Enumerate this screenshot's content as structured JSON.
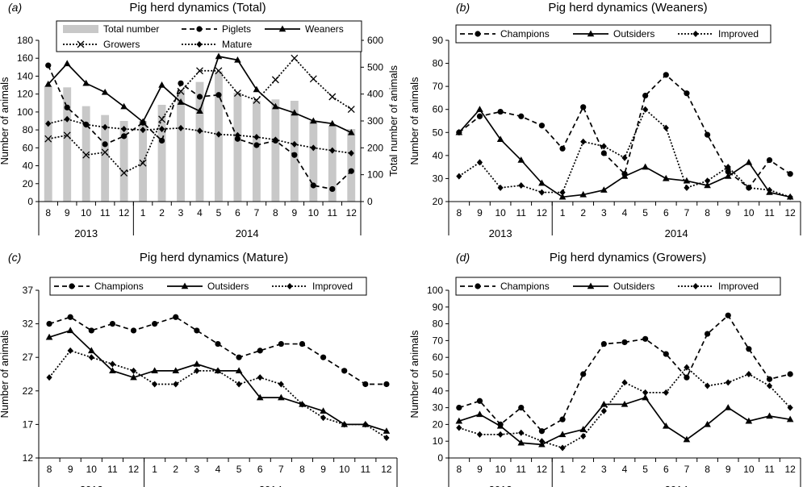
{
  "months": [
    "8",
    "9",
    "10",
    "11",
    "12",
    "1",
    "2",
    "3",
    "4",
    "5",
    "6",
    "7",
    "8",
    "9",
    "10",
    "11",
    "12"
  ],
  "years": [
    "2013",
    "2014"
  ],
  "chart_data": [
    {
      "id": "a",
      "panel": "(a)",
      "type": "line",
      "title": "Pig herd dynamics (Total)",
      "ylabel": "Number of animals",
      "y2label": "Total number of animals",
      "ylim": [
        0,
        180
      ],
      "yticks": [
        0,
        20,
        40,
        60,
        80,
        100,
        120,
        140,
        160,
        180
      ],
      "y2lim": [
        0,
        600
      ],
      "y2ticks": [
        0,
        100,
        200,
        300,
        400,
        500,
        600
      ],
      "bars": {
        "name": "Total number",
        "axis": "right",
        "values": [
          430,
          425,
          355,
          322,
          300,
          300,
          360,
          415,
          445,
          485,
          405,
          375,
          380,
          375,
          300,
          280,
          270
        ]
      },
      "series": [
        {
          "name": "Piglets",
          "style": "dashed",
          "marker": "circle",
          "values": [
            152,
            105,
            86,
            64,
            73,
            88,
            68,
            132,
            117,
            119,
            70,
            63,
            68,
            52,
            18,
            14,
            34
          ]
        },
        {
          "name": "Weaners",
          "style": "solid",
          "marker": "triangle",
          "values": [
            131,
            154,
            132,
            122,
            106,
            89,
            130,
            111,
            101,
            162,
            158,
            125,
            106,
            99,
            90,
            87,
            77
          ]
        },
        {
          "name": "Growers",
          "style": "dotted",
          "marker": "x",
          "values": [
            70,
            74,
            52,
            55,
            32,
            43,
            92,
            123,
            146,
            146,
            121,
            113,
            136,
            160,
            137,
            117,
            103
          ]
        },
        {
          "name": "Mature",
          "style": "dotted",
          "marker": "diamond",
          "values": [
            87,
            92,
            86,
            83,
            81,
            80,
            81,
            82,
            79,
            75,
            74,
            72,
            69,
            64,
            60,
            57,
            54
          ]
        }
      ]
    },
    {
      "id": "b",
      "panel": "(b)",
      "type": "line",
      "title": "Pig herd dynamics (Weaners)",
      "ylabel": "Number of animals",
      "ylim": [
        20,
        90
      ],
      "yticks": [
        20,
        30,
        40,
        50,
        60,
        70,
        80,
        90
      ],
      "series": [
        {
          "name": "Champions",
          "style": "dashed",
          "marker": "circle",
          "values": [
            50,
            57,
            59,
            57,
            53,
            43,
            61,
            41,
            32,
            66,
            75,
            67,
            49,
            33,
            26,
            38,
            32
          ]
        },
        {
          "name": "Outsiders",
          "style": "solid",
          "marker": "triangle",
          "values": [
            50,
            60,
            47,
            38,
            28,
            22,
            23,
            25,
            31,
            35,
            30,
            29,
            27,
            31,
            37,
            24,
            22
          ]
        },
        {
          "name": "Improved",
          "style": "dotted",
          "marker": "diamond",
          "values": [
            31,
            37,
            26,
            27,
            24,
            24,
            46,
            44,
            39,
            60,
            52,
            26,
            29,
            35,
            26,
            25,
            22
          ]
        }
      ]
    },
    {
      "id": "c",
      "panel": "(c)",
      "type": "line",
      "title": "Pig herd dynamics (Mature)",
      "ylabel": "Number of animals",
      "ylim": [
        12,
        37
      ],
      "yticks": [
        12,
        17,
        22,
        27,
        32,
        37
      ],
      "series": [
        {
          "name": "Champions",
          "style": "dashed",
          "marker": "circle",
          "values": [
            32,
            33,
            31,
            32,
            31,
            32,
            33,
            31,
            29,
            27,
            28,
            29,
            29,
            27,
            25,
            23,
            23
          ]
        },
        {
          "name": "Outsiders",
          "style": "solid",
          "marker": "triangle",
          "values": [
            30,
            31,
            28,
            25,
            24,
            25,
            25,
            26,
            25,
            25,
            21,
            21,
            20,
            19,
            17,
            17,
            16
          ]
        },
        {
          "name": "Improved",
          "style": "dotted",
          "marker": "diamond",
          "values": [
            24,
            28,
            27,
            26,
            25,
            23,
            23,
            25,
            25,
            23,
            24,
            23,
            20,
            18,
            17,
            17,
            15
          ]
        }
      ]
    },
    {
      "id": "d",
      "panel": "(d)",
      "type": "line",
      "title": "Pig herd dynamics (Growers)",
      "ylabel": "Number of animals",
      "ylim": [
        0,
        100
      ],
      "yticks": [
        0,
        10,
        20,
        30,
        40,
        50,
        60,
        70,
        80,
        90,
        100
      ],
      "series": [
        {
          "name": "Champions",
          "style": "dashed",
          "marker": "circle",
          "values": [
            30,
            34,
            20,
            30,
            16,
            23,
            50,
            68,
            69,
            71,
            62,
            48,
            74,
            85,
            65,
            47,
            50
          ]
        },
        {
          "name": "Outsiders",
          "style": "solid",
          "marker": "triangle",
          "values": [
            22,
            26,
            19,
            9,
            8,
            14,
            17,
            32,
            32,
            36,
            19,
            11,
            20,
            30,
            22,
            25,
            23
          ]
        },
        {
          "name": "Improved",
          "style": "dotted",
          "marker": "diamond",
          "values": [
            18,
            14,
            14,
            15,
            10,
            6,
            13,
            28,
            45,
            39,
            39,
            54,
            43,
            45,
            50,
            43,
            30
          ]
        }
      ]
    }
  ]
}
